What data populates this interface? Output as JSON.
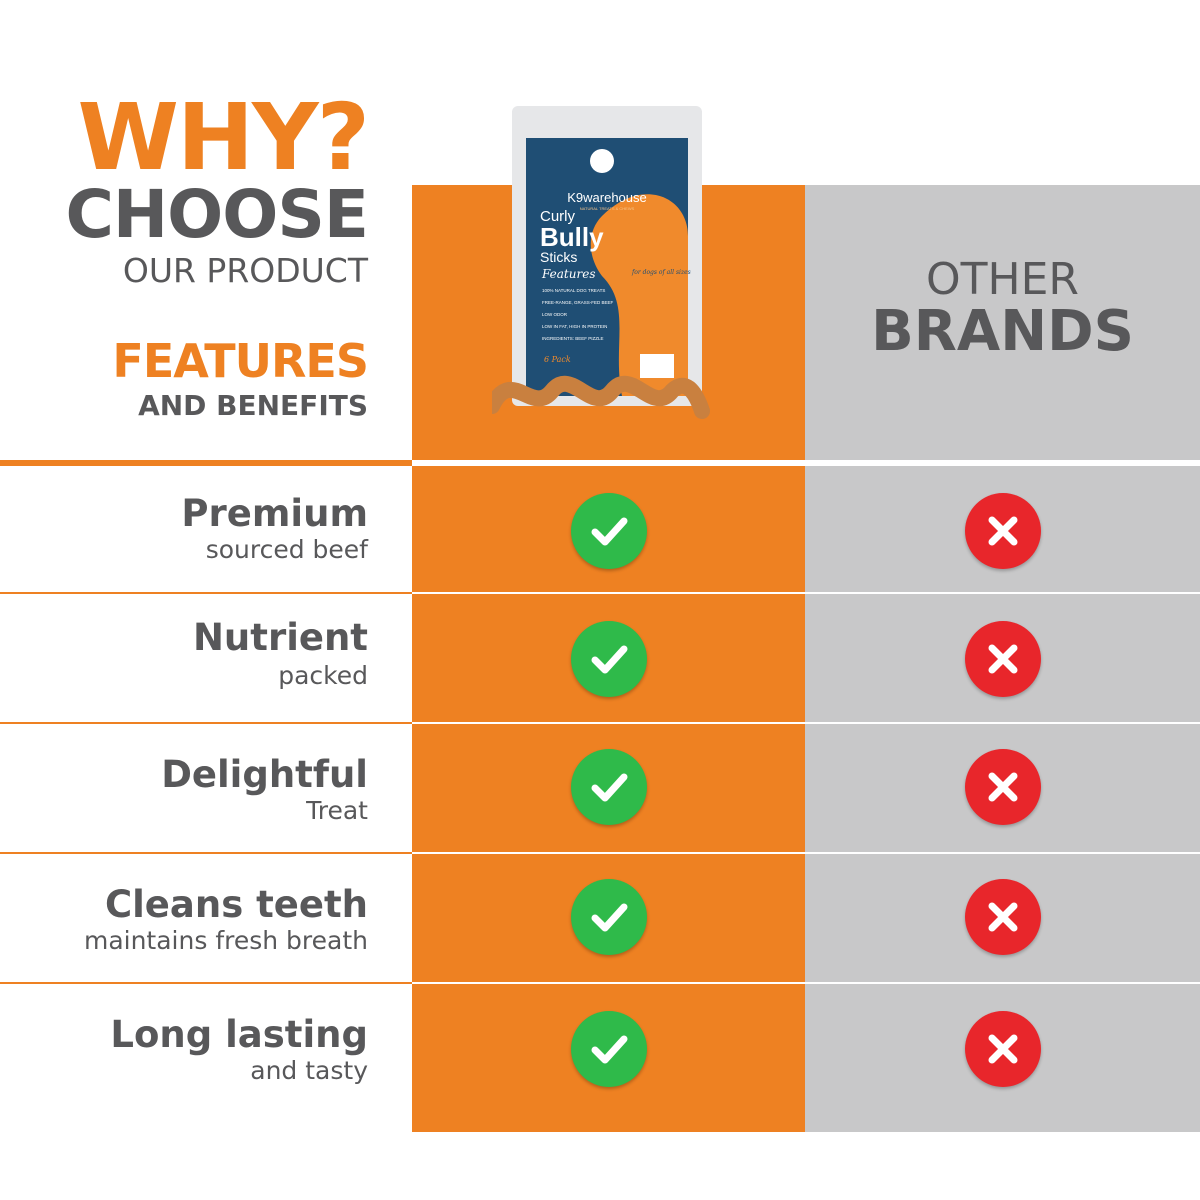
{
  "header": {
    "why": "WHY?",
    "choose": "CHOOSE",
    "our_product": "OUR PRODUCT",
    "features": "FEATURES",
    "and_benefits": "AND BENEFITS"
  },
  "competitor": {
    "line1": "OTHER",
    "line2": "BRANDS"
  },
  "product": {
    "brand": "K9warehouse",
    "tagline": "NATURAL TREATS & CHEWS",
    "name_line1": "Curly",
    "name_line2": "Bully",
    "name_line3": "Sticks",
    "features_heading": "Features",
    "features": [
      "100% NATURAL DOG TREATS",
      "FREE-RANGE, GRASS-FED BEEF",
      "LOW ODOR",
      "LOW IN FAT, HIGH IN PROTEIN",
      "INGREDIENTS: BEEF PIZZLE"
    ],
    "pack": "6 Pack",
    "for_dogs": "for dogs of all sizes"
  },
  "rows": [
    {
      "title": "Premium",
      "subtitle": "sourced beef",
      "ours": "check",
      "others": "cross"
    },
    {
      "title": "Nutrient",
      "subtitle": "packed",
      "ours": "check",
      "others": "cross"
    },
    {
      "title": "Delightful",
      "subtitle": "Treat",
      "ours": "check",
      "others": "cross"
    },
    {
      "title": "Cleans teeth",
      "subtitle": "maintains fresh breath",
      "ours": "check",
      "others": "cross"
    },
    {
      "title": "Long lasting",
      "subtitle": "and tasty",
      "ours": "check",
      "others": "cross"
    }
  ],
  "colors": {
    "orange": "#ee8122",
    "gray": "#c8c8c9",
    "text": "#58585a",
    "check": "#2fba4a",
    "cross": "#e8262b",
    "pack_blue": "#1f4e74"
  }
}
